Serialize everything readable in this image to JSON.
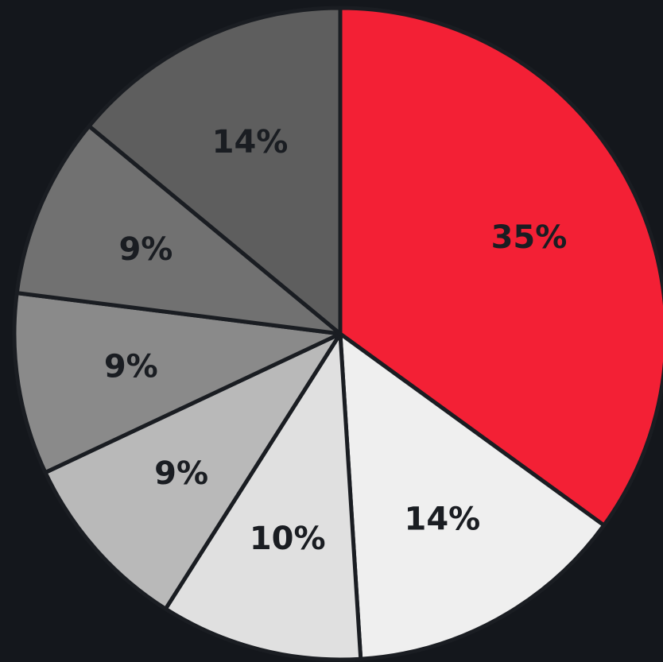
{
  "chart_data": {
    "type": "pie",
    "values": [
      35,
      14,
      10,
      9,
      9,
      9,
      14
    ],
    "labels": [
      "35%",
      "14%",
      "10%",
      "9%",
      "9%",
      "9%",
      "14%"
    ],
    "colors": [
      "#f32035",
      "#efefef",
      "#e0e0e0",
      "#b9b9b9",
      "#8a8a8a",
      "#717171",
      "#5e5e5e"
    ],
    "start": "12 o'clock",
    "direction": "clockwise",
    "legend": "none",
    "title": ""
  },
  "theme": {
    "background": "#14171c",
    "separator": "#1a1d22",
    "label_color": "#1a1d22"
  }
}
